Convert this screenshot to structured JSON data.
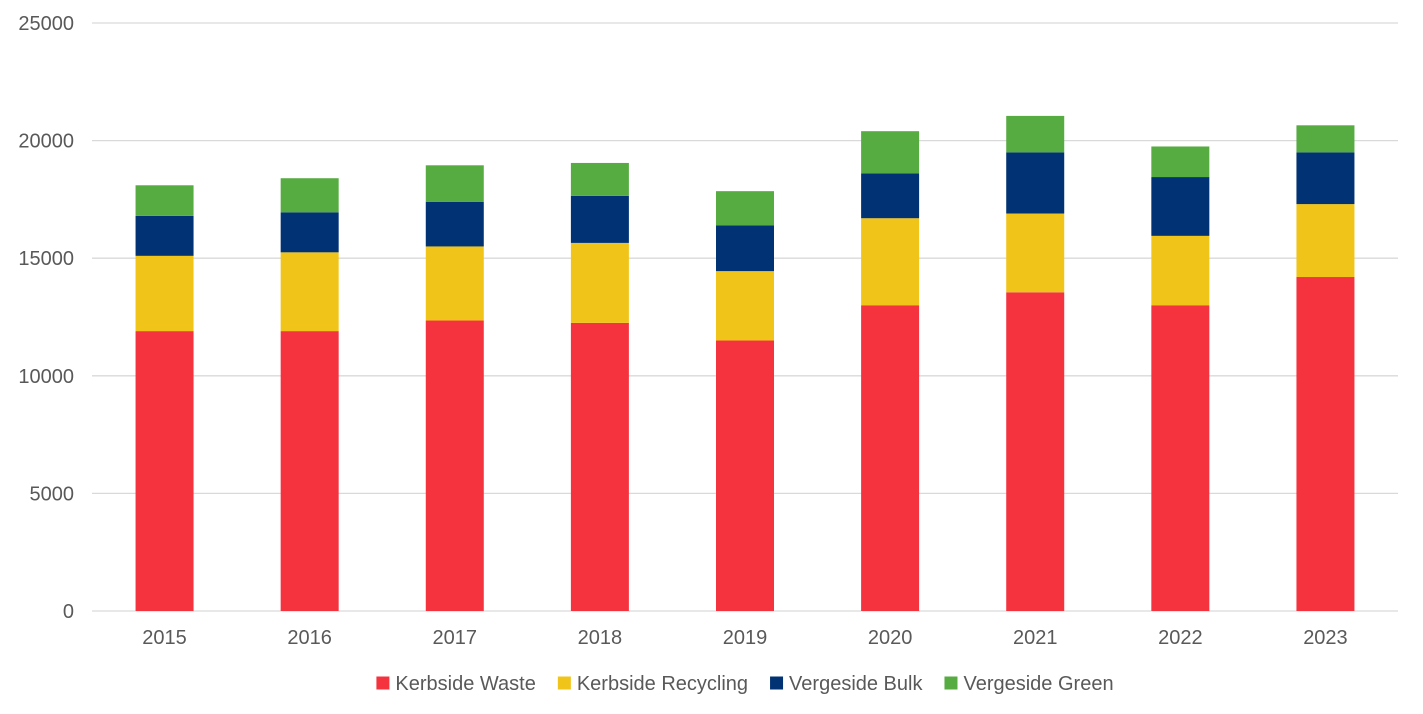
{
  "chart_data": {
    "type": "bar",
    "stacked": true,
    "title": "",
    "xlabel": "",
    "ylabel": "",
    "categories": [
      "2015",
      "2016",
      "2017",
      "2018",
      "2019",
      "2020",
      "2021",
      "2022",
      "2023"
    ],
    "ylim": [
      0,
      25000
    ],
    "y_ticks": [
      "0",
      "5000",
      "10000",
      "15000",
      "20000",
      "25000"
    ],
    "grid": true,
    "legend_position": "bottom",
    "series": [
      {
        "name": "Kerbside Waste",
        "color": "#f5333f",
        "values": [
          11900,
          11900,
          12350,
          12250,
          11500,
          13000,
          13550,
          13000,
          14200
        ]
      },
      {
        "name": "Kerbside Recycling",
        "color": "#f0c419",
        "values": [
          3200,
          3350,
          3150,
          3400,
          2950,
          3700,
          3350,
          2950,
          3100
        ]
      },
      {
        "name": "Vergeside Bulk",
        "color": "#003274",
        "values": [
          1700,
          1700,
          1900,
          2000,
          1950,
          1900,
          2600,
          2500,
          2200
        ]
      },
      {
        "name": "Vergeside Green",
        "color": "#56ab41",
        "values": [
          1300,
          1450,
          1550,
          1400,
          1450,
          1800,
          1550,
          1300,
          1150
        ]
      }
    ]
  }
}
